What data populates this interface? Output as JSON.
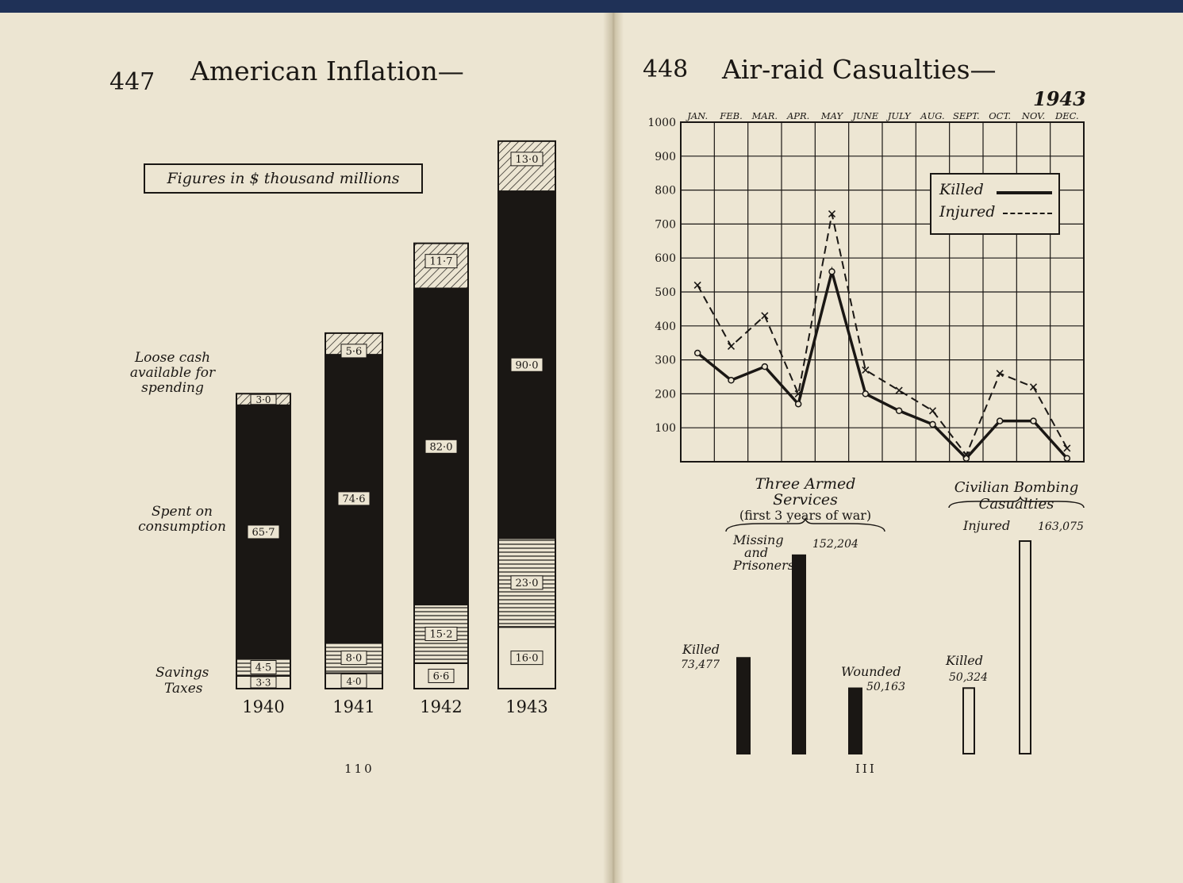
{
  "left_page": {
    "page_number": "447",
    "title": "American Inflation—",
    "note": "Figures in $ thousand millions",
    "folio": "110",
    "row_labels": {
      "loose_cash": "Loose cash available for spending",
      "spent": "Spent on consumption",
      "savings": "Savings",
      "taxes": "Taxes"
    }
  },
  "right_page": {
    "page_number": "448",
    "title": "Air-raid Casualties—",
    "year": "1943",
    "folio": "III",
    "legend": {
      "killed": "Killed",
      "injured": "Injured"
    },
    "armed_services_title": "Three Armed Services",
    "armed_services_subtitle": "(first 3 years of war)",
    "civilian_title": "Civilian Bombing Casualties"
  },
  "colors": {
    "paper": "#ece5d2",
    "ink": "#1a1714",
    "cloth": "#1f3157"
  },
  "chart_data": [
    {
      "type": "bar",
      "stacked": true,
      "note": "Figures in $ thousand millions",
      "categories": [
        "1940",
        "1941",
        "1942",
        "1943"
      ],
      "series": [
        {
          "name": "Taxes",
          "values": [
            3.3,
            4.0,
            6.6,
            16.0
          ],
          "labels": [
            "3·3",
            "4·0",
            "6·6",
            "16·0"
          ]
        },
        {
          "name": "Savings",
          "values": [
            4.5,
            8.0,
            15.2,
            23.0
          ],
          "labels": [
            "4·5",
            "8·0",
            "15·2",
            "23·0"
          ]
        },
        {
          "name": "Spent on consumption",
          "values": [
            65.7,
            74.6,
            82.0,
            90.0
          ],
          "labels": [
            "65·7",
            "74·6",
            "82·0",
            "90·0"
          ]
        },
        {
          "name": "Loose cash available for spending",
          "values": [
            3.0,
            5.6,
            11.7,
            13.0
          ],
          "labels": [
            "3·0",
            "5·6",
            "11·7",
            "13·0"
          ]
        }
      ]
    },
    {
      "type": "line",
      "title": "1943",
      "x": [
        "JAN.",
        "FEB.",
        "MAR.",
        "APR.",
        "MAY",
        "JUNE",
        "JULY",
        "AUG.",
        "SEPT.",
        "OCT.",
        "NOV.",
        "DEC."
      ],
      "ylim": [
        0,
        1000
      ],
      "yticks": [
        100,
        200,
        300,
        400,
        500,
        600,
        700,
        800,
        900,
        1000
      ],
      "grid": true,
      "legend": "top-right",
      "series": [
        {
          "name": "Killed",
          "values": [
            320,
            240,
            280,
            170,
            560,
            200,
            150,
            110,
            10,
            120,
            120,
            10
          ]
        },
        {
          "name": "Injured",
          "values": [
            520,
            340,
            430,
            200,
            730,
            270,
            210,
            150,
            20,
            260,
            220,
            40
          ]
        }
      ]
    },
    {
      "type": "bar",
      "groups": [
        "Three Armed Services (first 3 years of war)",
        "Civilian Bombing Casualties"
      ],
      "bars": [
        {
          "group": "Three Armed Services (first 3 years of war)",
          "name": "Killed",
          "value": 73477,
          "label": "73,477"
        },
        {
          "group": "Three Armed Services (first 3 years of war)",
          "name": "Missing and Prisoners",
          "value": 152204,
          "label": "152,204"
        },
        {
          "group": "Three Armed Services (first 3 years of war)",
          "name": "Wounded",
          "value": 50163,
          "label": "50,163"
        },
        {
          "group": "Civilian Bombing Casualties",
          "name": "Killed",
          "value": 50324,
          "label": "50,324"
        },
        {
          "group": "Civilian Bombing Casualties",
          "name": "Injured",
          "value": 163075,
          "label": "163,075"
        }
      ]
    }
  ]
}
